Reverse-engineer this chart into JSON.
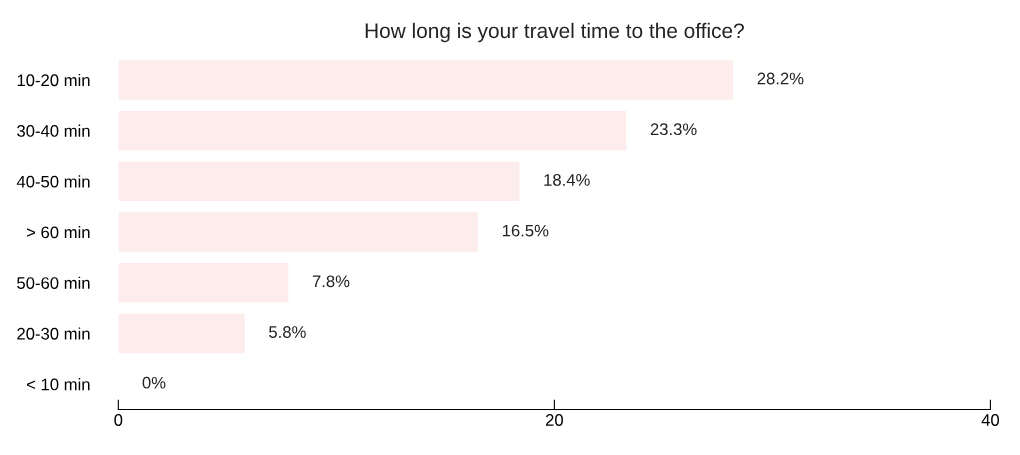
{
  "chart_data": {
    "type": "bar",
    "orientation": "horizontal",
    "title": "How long is your travel time to the office?",
    "categories": [
      "10-20 min",
      "30-40 min",
      "40-50 min",
      "> 60 min",
      "50-60 min",
      "20-30 min",
      "< 10 min"
    ],
    "values": [
      28.2,
      23.3,
      18.4,
      16.5,
      7.8,
      5.8,
      0
    ],
    "value_labels": [
      "28.2%",
      "23.3%",
      "18.4%",
      "16.5%",
      "7.8%",
      "5.8%",
      "0%"
    ],
    "color": "#fdecec",
    "xlim": [
      0,
      40
    ],
    "xticks": [
      0,
      20,
      40
    ],
    "grid": false
  }
}
